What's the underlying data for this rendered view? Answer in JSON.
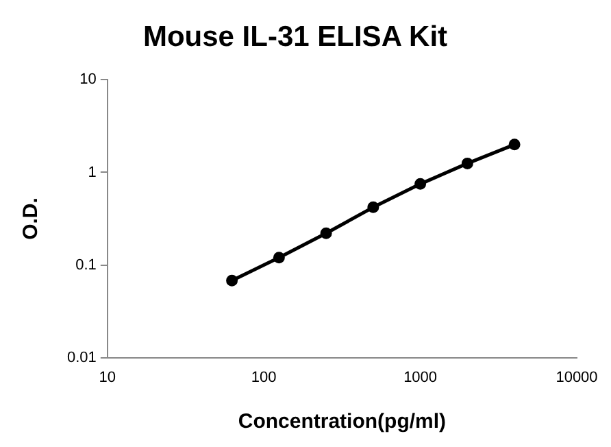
{
  "chart_data": {
    "type": "line",
    "title": "Mouse IL-31 ELISA Kit",
    "xlabel": "Concentration(pg/ml)",
    "ylabel": "O.D.",
    "x": [
      62.5,
      125,
      250,
      500,
      1000,
      2000,
      4000
    ],
    "series": [
      {
        "color": "#000000",
        "values": [
          0.068,
          0.12,
          0.22,
          0.42,
          0.75,
          1.25,
          2.0
        ]
      }
    ],
    "xlim": [
      10,
      10000
    ],
    "xticks": [
      10,
      100,
      1000,
      10000
    ],
    "ylim": [
      0.01,
      10
    ],
    "yticks": [
      0.01,
      0.1,
      1,
      10
    ],
    "log": "xy",
    "grid": false,
    "legend": false,
    "marker": "circle",
    "line_style": "solid"
  }
}
